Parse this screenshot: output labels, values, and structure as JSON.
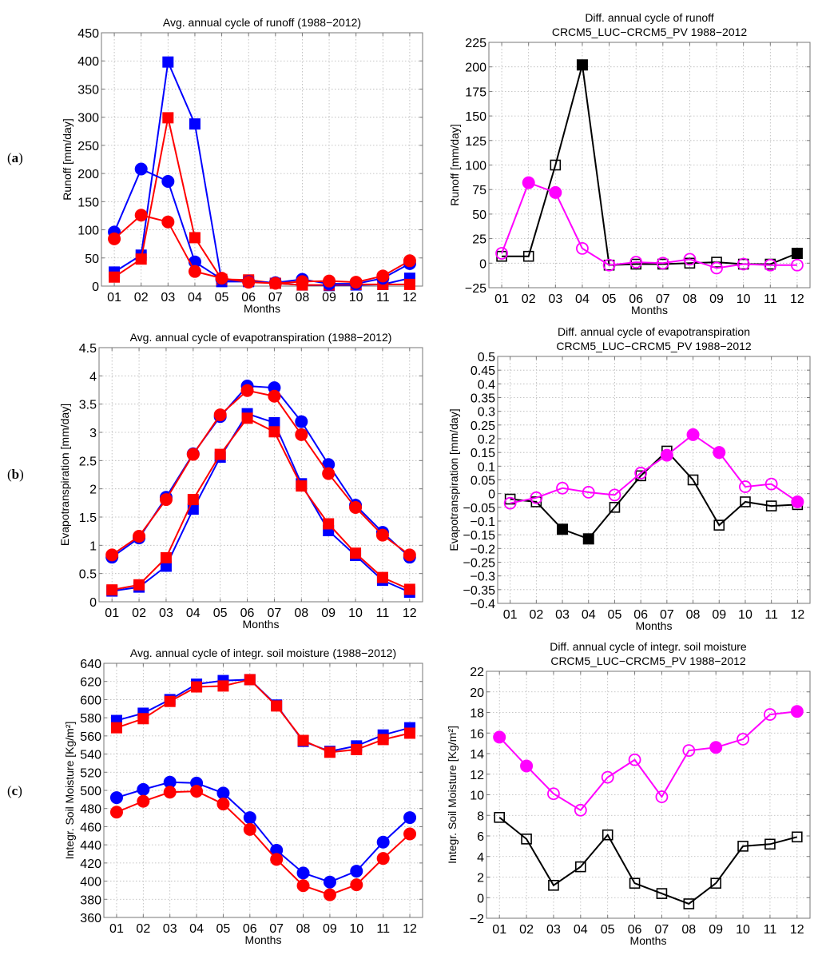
{
  "panel_labels": [
    {
      "prefix": "(",
      "letter": "a",
      "suffix": ")"
    },
    {
      "prefix": "(",
      "letter": "b",
      "suffix": ")"
    },
    {
      "prefix": "(",
      "letter": "c",
      "suffix": ")"
    }
  ],
  "colors": {
    "blue": "#0000ff",
    "red": "#ff0000",
    "magenta": "#ff00ff",
    "black": "#000000",
    "axis": "#777777",
    "grid": "#b5b5b5"
  },
  "chart_data": [
    {
      "id": "runoff-avg",
      "type": "line",
      "title": [
        "Avg. annual cycle of runoff (1988−2012)"
      ],
      "xlabel": "Months",
      "ylabel": "Runoff [mm/day]",
      "categories": [
        "01",
        "02",
        "03",
        "04",
        "05",
        "06",
        "07",
        "08",
        "09",
        "10",
        "11",
        "12"
      ],
      "ylim": [
        0,
        450
      ],
      "yticks": [
        0,
        50,
        100,
        150,
        200,
        250,
        300,
        350,
        400,
        450
      ],
      "ytick_labels": [
        "0",
        "50",
        "100",
        "150",
        "200",
        "250",
        "300",
        "350",
        "400",
        "450"
      ],
      "grid": true,
      "series": [
        {
          "name": "blue-squares",
          "color": "blue",
          "marker": "square",
          "filled": true,
          "values": [
            25,
            55,
            398,
            288,
            8,
            8,
            5,
            2,
            1,
            2,
            3,
            14
          ]
        },
        {
          "name": "red-squares",
          "color": "red",
          "marker": "square",
          "filled": true,
          "values": [
            16,
            48,
            299,
            86,
            12,
            11,
            5,
            2,
            2,
            3,
            3,
            3
          ]
        },
        {
          "name": "blue-circles",
          "color": "blue",
          "marker": "circle",
          "filled": true,
          "values": [
            96,
            208,
            186,
            43,
            12,
            8,
            6,
            12,
            4,
            4,
            14,
            40
          ]
        },
        {
          "name": "red-circles",
          "color": "red",
          "marker": "circle",
          "filled": true,
          "values": [
            84,
            126,
            114,
            26,
            14,
            7,
            5,
            8,
            9,
            7,
            18,
            45
          ]
        }
      ]
    },
    {
      "id": "runoff-diff",
      "type": "line",
      "title": [
        "Diff. annual cycle of runoff",
        "CRCM5_LUC−CRCM5_PV 1988−2012"
      ],
      "xlabel": "Months",
      "ylabel": "Runoff [mm/day]",
      "categories": [
        "01",
        "02",
        "03",
        "04",
        "05",
        "06",
        "07",
        "08",
        "09",
        "10",
        "11",
        "12"
      ],
      "ylim": [
        -25,
        225
      ],
      "yticks": [
        -25,
        0,
        25,
        50,
        75,
        100,
        125,
        150,
        175,
        200,
        225
      ],
      "ytick_labels": [
        "−25",
        "0",
        "25",
        "50",
        "75",
        "100",
        "125",
        "150",
        "175",
        "200",
        "225"
      ],
      "grid": true,
      "series": [
        {
          "name": "black-squares",
          "color": "black",
          "marker": "square",
          "values": [
            7,
            7,
            100,
            202,
            -2,
            -1,
            -1,
            0,
            1,
            -1,
            -1,
            10
          ],
          "filled_points": [
            false,
            false,
            false,
            true,
            false,
            false,
            false,
            false,
            false,
            false,
            false,
            true
          ]
        },
        {
          "name": "magenta-circles",
          "color": "magenta",
          "marker": "circle",
          "values": [
            10,
            82,
            72,
            15,
            -2,
            1,
            0,
            4,
            -5,
            -1,
            -2,
            -2
          ],
          "filled_points": [
            false,
            true,
            true,
            false,
            false,
            false,
            false,
            false,
            false,
            false,
            false,
            false
          ]
        }
      ]
    },
    {
      "id": "et-avg",
      "type": "line",
      "title": [
        "Avg. annual cycle of evapotranspiration (1988−2012)"
      ],
      "xlabel": "Months",
      "ylabel": "Evapotranspiration [mm/day]",
      "categories": [
        "01",
        "02",
        "03",
        "04",
        "05",
        "06",
        "07",
        "08",
        "09",
        "10",
        "11",
        "12"
      ],
      "ylim": [
        0,
        4.5
      ],
      "yticks": [
        0,
        0.5,
        1,
        1.5,
        2,
        2.5,
        3,
        3.5,
        4,
        4.5
      ],
      "ytick_labels": [
        "0",
        "0.5",
        "1",
        "1.5",
        "2",
        "2.5",
        "3",
        "3.5",
        "4",
        "4.5"
      ],
      "grid": true,
      "series": [
        {
          "name": "blue-circles",
          "color": "blue",
          "marker": "circle",
          "filled": true,
          "values": [
            0.79,
            1.13,
            1.85,
            2.62,
            3.28,
            3.82,
            3.79,
            3.19,
            2.43,
            1.71,
            1.23,
            0.79
          ]
        },
        {
          "name": "red-circles",
          "color": "red",
          "marker": "circle",
          "filled": true,
          "values": [
            0.83,
            1.16,
            1.81,
            2.61,
            3.31,
            3.74,
            3.64,
            2.96,
            2.27,
            1.67,
            1.18,
            0.83
          ]
        },
        {
          "name": "blue-squares",
          "color": "blue",
          "marker": "square",
          "filled": true,
          "values": [
            0.19,
            0.26,
            0.63,
            1.64,
            2.56,
            3.33,
            3.17,
            2.09,
            1.26,
            0.82,
            0.38,
            0.17
          ]
        },
        {
          "name": "red-squares",
          "color": "red",
          "marker": "square",
          "filled": true,
          "values": [
            0.21,
            0.3,
            0.78,
            1.81,
            2.61,
            3.25,
            3.01,
            2.05,
            1.38,
            0.86,
            0.43,
            0.22
          ]
        }
      ]
    },
    {
      "id": "et-diff",
      "type": "line",
      "title": [
        "Diff. annual cycle of evapotranspiration",
        "CRCM5_LUC−CRCM5_PV 1988−2012"
      ],
      "xlabel": "Months",
      "ylabel": "Evapotranspiration [mm/day]",
      "categories": [
        "01",
        "02",
        "03",
        "04",
        "05",
        "06",
        "07",
        "08",
        "09",
        "10",
        "11",
        "12"
      ],
      "ylim": [
        -0.4,
        0.5
      ],
      "yticks": [
        -0.4,
        -0.35,
        -0.3,
        -0.25,
        -0.2,
        -0.15,
        -0.1,
        -0.05,
        0,
        0.05,
        0.1,
        0.15,
        0.2,
        0.25,
        0.3,
        0.35,
        0.4,
        0.45,
        0.5
      ],
      "ytick_labels": [
        "−0.4",
        "−0.35",
        "−0.3",
        "−0.25",
        "−0.2",
        "−0.15",
        "−0.1",
        "−0.05",
        "0",
        "0.05",
        "0.1",
        "0.15",
        "0.2",
        "0.25",
        "0.3",
        "0.35",
        "0.4",
        "0.45",
        "0.5"
      ],
      "grid": true,
      "series": [
        {
          "name": "black-squares",
          "color": "black",
          "marker": "square",
          "values": [
            -0.02,
            -0.03,
            -0.13,
            -0.165,
            -0.05,
            0.065,
            0.155,
            0.05,
            -0.115,
            -0.03,
            -0.045,
            -0.04
          ],
          "filled_points": [
            false,
            false,
            true,
            true,
            false,
            false,
            false,
            false,
            false,
            false,
            false,
            false
          ]
        },
        {
          "name": "magenta-circles",
          "color": "magenta",
          "marker": "circle",
          "values": [
            -0.035,
            -0.015,
            0.02,
            0.005,
            -0.005,
            0.075,
            0.14,
            0.215,
            0.15,
            0.025,
            0.035,
            -0.03
          ],
          "filled_points": [
            false,
            false,
            false,
            false,
            false,
            false,
            true,
            true,
            true,
            false,
            false,
            true
          ]
        }
      ]
    },
    {
      "id": "sm-avg",
      "type": "line",
      "title": [
        "Avg. annual cycle of integr. soil moisture (1988−2012)"
      ],
      "xlabel": "Months",
      "ylabel": "Integr. Soil Moisture [Kg/m²]",
      "categories": [
        "01",
        "02",
        "03",
        "04",
        "05",
        "06",
        "07",
        "08",
        "09",
        "10",
        "11",
        "12"
      ],
      "ylim": [
        360,
        640
      ],
      "yticks": [
        360,
        380,
        400,
        420,
        440,
        460,
        480,
        500,
        520,
        540,
        560,
        580,
        600,
        620,
        640
      ],
      "ytick_labels": [
        "360",
        "380",
        "400",
        "420",
        "440",
        "460",
        "480",
        "500",
        "520",
        "540",
        "560",
        "580",
        "600",
        "620",
        "640"
      ],
      "grid": true,
      "series": [
        {
          "name": "blue-squares",
          "color": "blue",
          "marker": "square",
          "filled": true,
          "values": [
            577,
            585,
            600,
            617,
            621,
            622,
            594,
            554,
            543,
            549,
            561,
            569
          ]
        },
        {
          "name": "red-squares",
          "color": "red",
          "marker": "square",
          "filled": true,
          "values": [
            569,
            579,
            598,
            614,
            615,
            622,
            593,
            555,
            542,
            545,
            556,
            563
          ]
        },
        {
          "name": "blue-circles",
          "color": "blue",
          "marker": "circle",
          "filled": true,
          "values": [
            492,
            501,
            509,
            508,
            497,
            470,
            434,
            409,
            399,
            411,
            443,
            470
          ]
        },
        {
          "name": "red-circles",
          "color": "red",
          "marker": "circle",
          "filled": true,
          "values": [
            476,
            488,
            498,
            499,
            485,
            457,
            424,
            395,
            385,
            396,
            425,
            452
          ]
        }
      ]
    },
    {
      "id": "sm-diff",
      "type": "line",
      "title": [
        "Diff. annual cycle of integr. soil moisture",
        "CRCM5_LUC−CRCM5_PV 1988−2012"
      ],
      "xlabel": "Months",
      "ylabel": "Integr. Soil Moisture [Kg/m²]",
      "categories": [
        "01",
        "02",
        "03",
        "04",
        "05",
        "06",
        "07",
        "08",
        "09",
        "10",
        "11",
        "12"
      ],
      "ylim": [
        -2,
        22
      ],
      "yticks": [
        -2,
        0,
        2,
        4,
        6,
        8,
        10,
        12,
        14,
        16,
        18,
        20,
        22
      ],
      "ytick_labels": [
        "−2",
        "0",
        "2",
        "4",
        "6",
        "8",
        "10",
        "12",
        "14",
        "16",
        "18",
        "20",
        "22"
      ],
      "grid": true,
      "series": [
        {
          "name": "black-squares",
          "color": "black",
          "marker": "square",
          "values": [
            7.8,
            5.7,
            1.2,
            3.0,
            6.1,
            1.4,
            0.4,
            -0.6,
            1.4,
            5.0,
            5.2,
            5.9
          ],
          "filled_points": [
            false,
            false,
            false,
            false,
            false,
            false,
            false,
            false,
            false,
            false,
            false,
            false
          ]
        },
        {
          "name": "magenta-circles",
          "color": "magenta",
          "marker": "circle",
          "values": [
            15.6,
            12.8,
            10.1,
            8.5,
            11.7,
            13.4,
            9.8,
            14.3,
            14.6,
            15.4,
            17.8,
            18.1
          ],
          "filled_points": [
            true,
            true,
            false,
            false,
            false,
            false,
            false,
            false,
            true,
            false,
            false,
            true
          ]
        }
      ]
    }
  ]
}
